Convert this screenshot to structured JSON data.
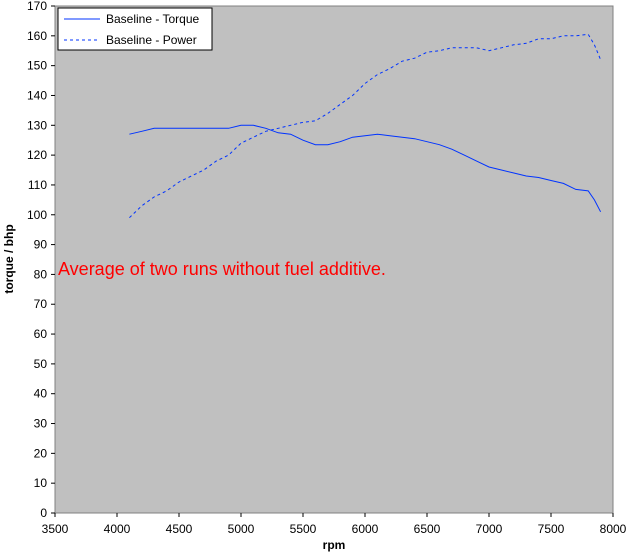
{
  "chart_data": {
    "type": "line",
    "title": "",
    "xlabel": "rpm",
    "ylabel": "torque / bhp",
    "xlim": [
      3500,
      8000
    ],
    "ylim": [
      0,
      170
    ],
    "xticks": [
      3500,
      4000,
      4500,
      5000,
      5500,
      6000,
      6500,
      7000,
      7500,
      8000
    ],
    "yticks": [
      0,
      10,
      20,
      30,
      40,
      50,
      60,
      70,
      80,
      90,
      100,
      110,
      120,
      130,
      140,
      150,
      160,
      170
    ],
    "grid": false,
    "plot_background": "#c0c0c0",
    "legend_position": "top-left",
    "annotation": {
      "text": "Average of two runs without fuel additive.",
      "color": "#ff0000"
    },
    "series": [
      {
        "name": "Baseline - Torque",
        "style": "solid",
        "color": "#0033ff",
        "x": [
          4100,
          4200,
          4300,
          4400,
          4500,
          4600,
          4700,
          4800,
          4900,
          5000,
          5100,
          5200,
          5300,
          5400,
          5500,
          5600,
          5700,
          5800,
          5900,
          6000,
          6100,
          6200,
          6300,
          6400,
          6500,
          6600,
          6700,
          6800,
          6900,
          7000,
          7100,
          7200,
          7300,
          7400,
          7500,
          7600,
          7700,
          7800,
          7850,
          7900
        ],
        "y": [
          127,
          128,
          129,
          129,
          129,
          129,
          129,
          129,
          129,
          130,
          130,
          129,
          127.5,
          127,
          125,
          123.5,
          123.5,
          124.5,
          126,
          126.5,
          127,
          126.5,
          126,
          125.5,
          124.5,
          123.5,
          122,
          120,
          118,
          116,
          115,
          114,
          113,
          112.5,
          111.5,
          110.5,
          108.5,
          108,
          105,
          101
        ]
      },
      {
        "name": "Baseline - Power",
        "style": "dashed",
        "color": "#0033ff",
        "x": [
          4100,
          4200,
          4300,
          4400,
          4500,
          4600,
          4700,
          4800,
          4900,
          5000,
          5100,
          5200,
          5300,
          5400,
          5500,
          5600,
          5700,
          5800,
          5900,
          6000,
          6100,
          6200,
          6300,
          6400,
          6500,
          6600,
          6700,
          6800,
          6900,
          7000,
          7100,
          7200,
          7300,
          7400,
          7500,
          7600,
          7700,
          7800,
          7850,
          7900
        ],
        "y": [
          99,
          103,
          106,
          108,
          111,
          113,
          115,
          118,
          120,
          124,
          126,
          128,
          129,
          130,
          131,
          131.5,
          134,
          137,
          140,
          144,
          147,
          149,
          151.5,
          152.5,
          154.5,
          155,
          156,
          156,
          156,
          155,
          156,
          157,
          157.5,
          159,
          159,
          160,
          160,
          160.5,
          157,
          152
        ]
      }
    ]
  }
}
